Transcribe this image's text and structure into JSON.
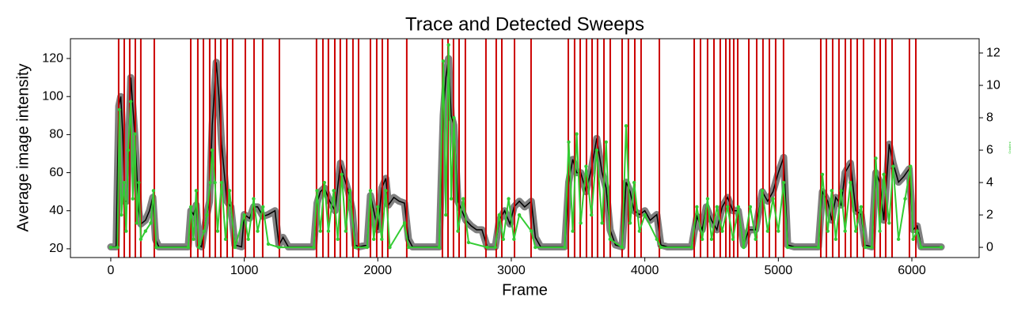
{
  "chart_data": {
    "type": "line",
    "title": "Trace and Detected Sweeps",
    "xlabel": "Frame",
    "ylabel": "Average image intensity",
    "y2label": "Gradient",
    "xlim": [
      -302,
      6504
    ],
    "xticks": [
      0,
      1000,
      2000,
      3000,
      4000,
      5000,
      6000
    ],
    "ylim": [
      15.4,
      130.4
    ],
    "yticks": [
      20,
      40,
      60,
      80,
      100,
      120
    ],
    "y2lim": [
      -0.63,
      12.88
    ],
    "y2ticks": [
      0,
      2,
      4,
      6,
      8,
      10,
      12
    ],
    "sweep_color": "#cc0000",
    "sweeps": [
      59,
      101,
      142,
      184,
      225,
      326,
      599,
      652,
      694,
      741,
      783,
      824,
      872,
      913,
      1008,
      1073,
      1138,
      1263,
      1541,
      1589,
      1630,
      1678,
      1719,
      1767,
      1814,
      1856,
      1945,
      1992,
      2034,
      2075,
      2217,
      2484,
      2526,
      2567,
      2609,
      2656,
      2810,
      2887,
      2929,
      3024,
      3148,
      3427,
      3474,
      3516,
      3563,
      3605,
      3646,
      3694,
      3741,
      3830,
      3877,
      3925,
      3972,
      4109,
      4370,
      4417,
      4470,
      4518,
      4565,
      4607,
      4636,
      4666,
      4696,
      4779,
      4838,
      4885,
      4933,
      4980,
      5039,
      5318,
      5360,
      5407,
      5454,
      5502,
      5543,
      5591,
      5638,
      5721,
      5763,
      5804,
      5852,
      5982,
      6030
    ],
    "series": [
      {
        "color": "#000000",
        "marker_color": "#808080",
        "axis": "y",
        "x": [
          0,
          40,
          60,
          75,
          90,
          105,
          120,
          135,
          150,
          165,
          180,
          195,
          210,
          225,
          260,
          290,
          315,
          335,
          360,
          580,
          600,
          620,
          640,
          660,
          680,
          700,
          720,
          740,
          760,
          790,
          810,
          830,
          850,
          870,
          900,
          930,
          980,
          1000,
          1040,
          1070,
          1100,
          1140,
          1180,
          1230,
          1260,
          1290,
          1330,
          1520,
          1545,
          1570,
          1600,
          1640,
          1680,
          1720,
          1750,
          1780,
          1810,
          1830,
          1860,
          1920,
          1945,
          1970,
          2000,
          2030,
          2060,
          2080,
          2120,
          2160,
          2200,
          2230,
          2260,
          2460,
          2490,
          2510,
          2530,
          2550,
          2570,
          2600,
          2630,
          2660,
          2700,
          2740,
          2780,
          2820,
          2880,
          2910,
          2950,
          2990,
          3020,
          3060,
          3100,
          3150,
          3180,
          3220,
          3400,
          3430,
          3460,
          3490,
          3520,
          3560,
          3600,
          3640,
          3680,
          3710,
          3740,
          3780,
          3830,
          3860,
          3890,
          3920,
          3960,
          4000,
          4040,
          4090,
          4120,
          4170,
          4350,
          4390,
          4430,
          4460,
          4500,
          4540,
          4580,
          4620,
          4660,
          4700,
          4740,
          4780,
          4830,
          4880,
          4920,
          4960,
          5000,
          5040,
          5070,
          5120,
          5300,
          5330,
          5370,
          5400,
          5430,
          5470,
          5500,
          5540,
          5580,
          5620,
          5650,
          5700,
          5730,
          5760,
          5790,
          5830,
          5860,
          5900,
          5940,
          5980,
          6010,
          6040,
          6070,
          6220
        ],
        "values": [
          21,
          21,
          95,
          100,
          80,
          45,
          45,
          75,
          110,
          95,
          80,
          60,
          40,
          33,
          35,
          40,
          47,
          25,
          21,
          21,
          40,
          38,
          43,
          22,
          21,
          30,
          38,
          45,
          85,
          118,
          100,
          75,
          60,
          45,
          42,
          22,
          21,
          38,
          36,
          42,
          42,
          37,
          38,
          40,
          22,
          26,
          21,
          21,
          44,
          50,
          52,
          45,
          40,
          65,
          57,
          50,
          40,
          22,
          21,
          22,
          48,
          40,
          30,
          52,
          57,
          43,
          47,
          45,
          44,
          25,
          21,
          21,
          90,
          110,
          120,
          90,
          85,
          45,
          40,
          35,
          32,
          30,
          30,
          21,
          21,
          35,
          40,
          33,
          42,
          45,
          42,
          45,
          26,
          21,
          21,
          55,
          67,
          60,
          60,
          50,
          62,
          78,
          60,
          52,
          30,
          22,
          21,
          55,
          50,
          40,
          38,
          40,
          35,
          38,
          22,
          21,
          21,
          37,
          30,
          42,
          35,
          30,
          42,
          47,
          40,
          40,
          22,
          30,
          30,
          50,
          45,
          50,
          60,
          68,
          22,
          21,
          21,
          50,
          45,
          35,
          47,
          43,
          60,
          65,
          40,
          38,
          22,
          21,
          60,
          55,
          35,
          75,
          65,
          55,
          58,
          62,
          30,
          32,
          21,
          21
        ]
      },
      {
        "color": "#33cc33",
        "axis": "y2",
        "x": [
          0,
          50,
          65,
          80,
          100,
          115,
          130,
          150,
          165,
          180,
          195,
          210,
          225,
          260,
          300,
          320,
          340,
          580,
          600,
          620,
          640,
          660,
          700,
          720,
          745,
          760,
          780,
          800,
          830,
          860,
          890,
          930,
          1000,
          1030,
          1070,
          1100,
          1140,
          1180,
          1260,
          1520,
          1545,
          1570,
          1600,
          1630,
          1670,
          1700,
          1730,
          1760,
          1790,
          1830,
          1920,
          1945,
          1970,
          2000,
          2030,
          2060,
          2090,
          2200,
          2230,
          2460,
          2490,
          2510,
          2530,
          2550,
          2570,
          2600,
          2640,
          2680,
          2820,
          2880,
          2910,
          2940,
          2980,
          3020,
          3060,
          3150,
          3180,
          3400,
          3430,
          3460,
          3490,
          3520,
          3560,
          3600,
          3640,
          3680,
          3710,
          3740,
          3830,
          3860,
          3890,
          3920,
          3960,
          4000,
          4090,
          4120,
          4350,
          4390,
          4430,
          4470,
          4500,
          4540,
          4580,
          4620,
          4660,
          4700,
          4740,
          4790,
          4830,
          4880,
          4920,
          4960,
          5000,
          5040,
          5070,
          5300,
          5330,
          5370,
          5400,
          5430,
          5470,
          5500,
          5540,
          5580,
          5620,
          5650,
          5700,
          5730,
          5760,
          5790,
          5830,
          5860,
          5900,
          5950,
          5990,
          6010,
          6040,
          6070,
          6220
        ],
        "values": [
          0,
          0,
          8.5,
          2,
          4,
          1,
          6,
          9,
          3,
          7,
          1.5,
          4,
          0.5,
          1,
          1.5,
          3.5,
          0,
          0,
          2.5,
          0.5,
          3.5,
          0,
          1,
          2,
          4,
          6,
          4,
          1,
          4,
          0.5,
          3.5,
          0,
          2,
          0.5,
          3,
          1,
          2.5,
          0.2,
          0,
          0,
          3.5,
          1,
          4,
          1,
          3.5,
          0.5,
          4.5,
          1,
          3.5,
          0,
          0,
          3.5,
          0.5,
          2.5,
          0.5,
          3.5,
          0,
          1.5,
          0,
          0,
          11.5,
          2,
          12.5,
          3,
          8,
          1,
          3,
          0.3,
          0,
          0,
          2,
          0.5,
          3,
          0.5,
          2,
          1,
          0,
          0,
          6.5,
          1,
          7,
          1.5,
          5,
          2,
          6,
          1.5,
          6.5,
          0.5,
          0,
          7.5,
          1.5,
          4,
          1,
          2,
          0.5,
          0,
          0,
          2.5,
          0.5,
          3,
          0.5,
          2.5,
          1,
          2.5,
          0.5,
          2.5,
          0,
          2.5,
          0.5,
          3.5,
          1,
          3,
          1,
          4,
          0,
          0,
          4.5,
          1,
          3.5,
          0.5,
          3.5,
          1,
          4,
          1,
          2.5,
          0,
          0,
          5.5,
          1,
          4.5,
          1.5,
          5,
          0.5,
          3,
          5,
          0.5,
          1,
          0,
          0
        ]
      }
    ]
  }
}
